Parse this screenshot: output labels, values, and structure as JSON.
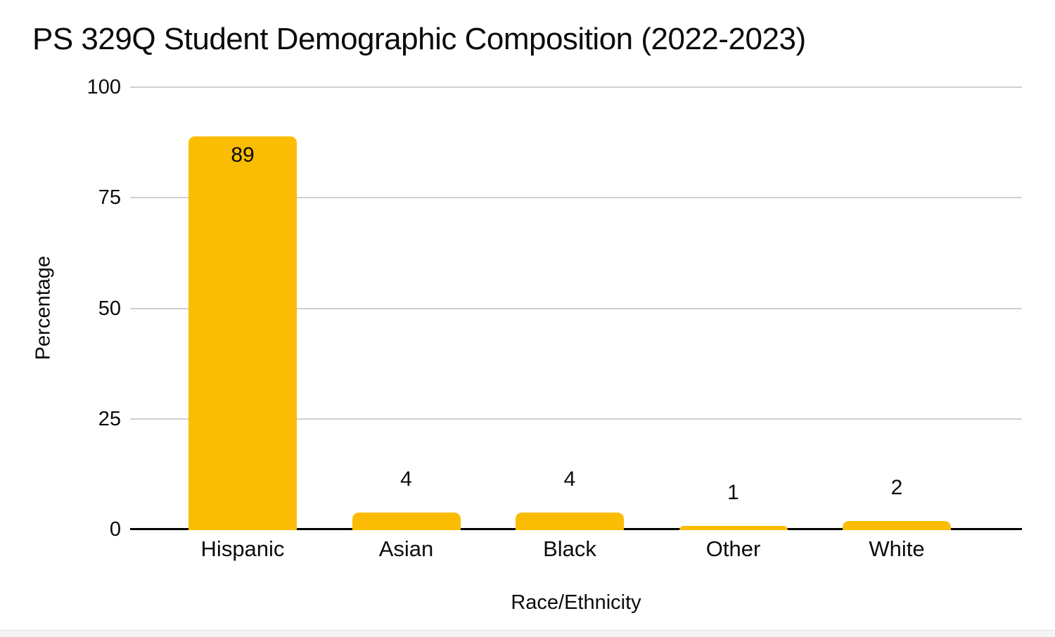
{
  "page": {
    "background": "#ffffff",
    "bottom_strip_color": "#f4f4f4"
  },
  "chart_data": {
    "type": "bar",
    "title": "PS 329Q Student Demographic Composition (2022-2023)",
    "xlabel": "Race/Ethnicity",
    "ylabel": "Percentage",
    "categories": [
      "Hispanic",
      "Asian",
      "Black",
      "Other",
      "White"
    ],
    "values": [
      89,
      4,
      4,
      1,
      2
    ],
    "yticks": [
      0,
      25,
      50,
      75,
      100
    ],
    "ylim": [
      0,
      100
    ],
    "grid": true,
    "legend": "none",
    "bar_color": "#FBBC04",
    "gridline_color": "#D0D0D0",
    "axis_line_color": "#000000",
    "text_color": "#0B0B0B"
  }
}
